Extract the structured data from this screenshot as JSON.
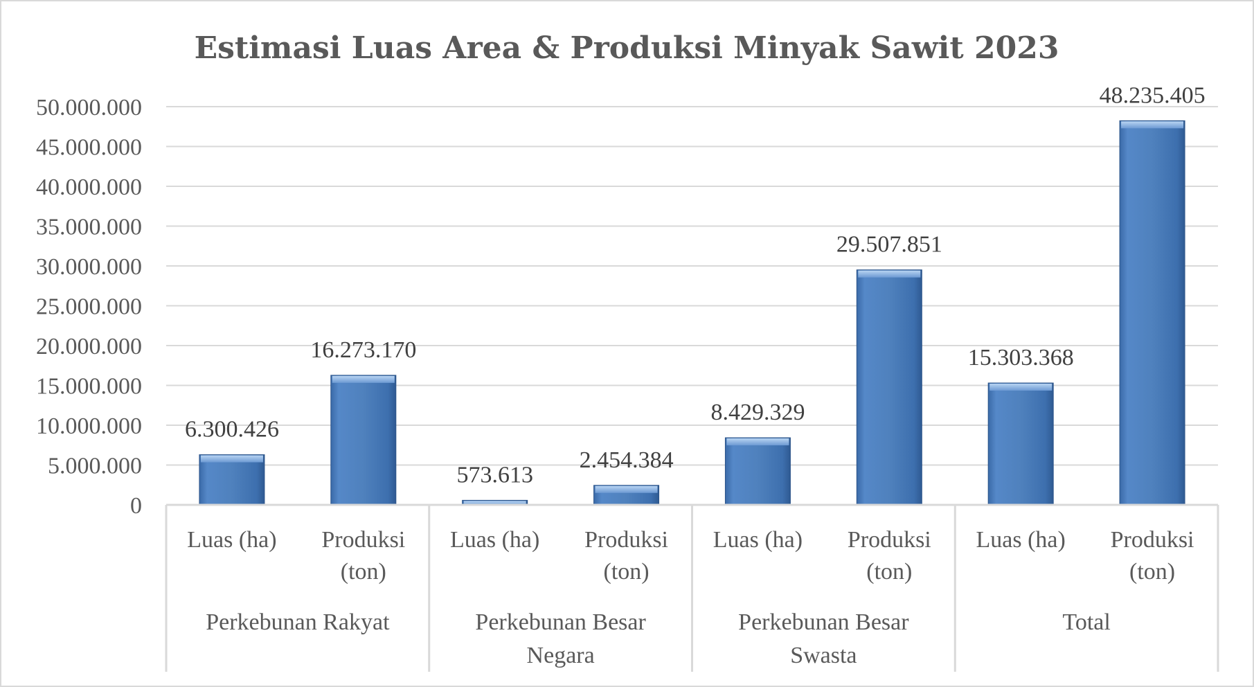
{
  "chart_data": {
    "type": "bar",
    "title": "Estimasi Luas Area & Produksi Minyak Sawit 2023",
    "xlabel": "",
    "ylabel": "",
    "ylim": [
      0,
      50000000
    ],
    "yticks": [
      0,
      5000000,
      10000000,
      15000000,
      20000000,
      25000000,
      30000000,
      35000000,
      40000000,
      45000000,
      50000000
    ],
    "ytick_labels": [
      "0",
      "5.000.000",
      "10.000.000",
      "15.000.000",
      "20.000.000",
      "25.000.000",
      "30.000.000",
      "35.000.000",
      "40.000.000",
      "45.000.000",
      "50.000.000"
    ],
    "grid": true,
    "bar_color": "#4f81bd",
    "groups": [
      {
        "label": "Perkebunan Rakyat",
        "bars": [
          {
            "label": "Luas (ha)",
            "value": 6300426,
            "value_label": "6.300.426"
          },
          {
            "label": "Produksi (ton)",
            "value": 16273170,
            "value_label": "16.273.170"
          }
        ]
      },
      {
        "label": "Perkebunan Besar Negara",
        "bars": [
          {
            "label": "Luas (ha)",
            "value": 573613,
            "value_label": "573.613"
          },
          {
            "label": "Produksi (ton)",
            "value": 2454384,
            "value_label": "2.454.384"
          }
        ]
      },
      {
        "label": "Perkebunan Besar Swasta",
        "bars": [
          {
            "label": "Luas (ha)",
            "value": 8429329,
            "value_label": "8.429.329"
          },
          {
            "label": "Produksi (ton)",
            "value": 29507851,
            "value_label": "29.507.851"
          }
        ]
      },
      {
        "label": "Total",
        "bars": [
          {
            "label": "Luas (ha)",
            "value": 15303368,
            "value_label": "15.303.368"
          },
          {
            "label": "Produksi (ton)",
            "value": 48235405,
            "value_label": "48.235.405"
          }
        ]
      }
    ]
  }
}
